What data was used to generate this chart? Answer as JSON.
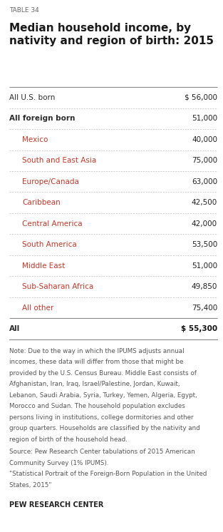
{
  "table_label": "TABLE 34",
  "title": "Median household income, by\nnativity and region of birth: 2015",
  "rows": [
    {
      "label": "All U.S. born",
      "value": "$ 56,000",
      "indent": 0,
      "bold": false,
      "label_color": "#2c2c2c",
      "value_bold": false,
      "top_line_solid": true
    },
    {
      "label": "All foreign born",
      "value": "51,000",
      "indent": 0,
      "bold": true,
      "label_color": "#2c2c2c",
      "value_bold": false,
      "top_line_solid": false
    },
    {
      "label": "Mexico",
      "value": "40,000",
      "indent": 1,
      "bold": false,
      "label_color": "#c0392b",
      "value_bold": false,
      "top_line_solid": false
    },
    {
      "label": "South and East Asia",
      "value": "75,000",
      "indent": 1,
      "bold": false,
      "label_color": "#c0392b",
      "value_bold": false,
      "top_line_solid": false
    },
    {
      "label": "Europe/Canada",
      "value": "63,000",
      "indent": 1,
      "bold": false,
      "label_color": "#c0392b",
      "value_bold": false,
      "top_line_solid": false
    },
    {
      "label": "Caribbean",
      "value": "42,500",
      "indent": 1,
      "bold": false,
      "label_color": "#c0392b",
      "value_bold": false,
      "top_line_solid": false
    },
    {
      "label": "Central America",
      "value": "42,000",
      "indent": 1,
      "bold": false,
      "label_color": "#c0392b",
      "value_bold": false,
      "top_line_solid": false
    },
    {
      "label": "South America",
      "value": "53,500",
      "indent": 1,
      "bold": false,
      "label_color": "#c0392b",
      "value_bold": false,
      "top_line_solid": false
    },
    {
      "label": "Middle East",
      "value": "51,000",
      "indent": 1,
      "bold": false,
      "label_color": "#c0392b",
      "value_bold": false,
      "top_line_solid": false
    },
    {
      "label": "Sub-Saharan Africa",
      "value": "49,850",
      "indent": 1,
      "bold": false,
      "label_color": "#c0392b",
      "value_bold": false,
      "top_line_solid": false
    },
    {
      "label": "All other",
      "value": "75,400",
      "indent": 1,
      "bold": false,
      "label_color": "#c0392b",
      "value_bold": false,
      "top_line_solid": false
    },
    {
      "label": "All",
      "value": "$ 55,300",
      "indent": 0,
      "bold": true,
      "label_color": "#2c2c2c",
      "value_bold": true,
      "top_line_solid": true
    }
  ],
  "note_lines": [
    "Note: Due to the way in which the IPUMS adjusts annual",
    "incomes, these data will differ from those that might be",
    "provided by the U.S. Census Bureau. Middle East consists of",
    "Afghanistan, Iran, Iraq, Israel/Palestine, Jordan, Kuwait,",
    "Lebanon, Saudi Arabia, Syria, Turkey, Yemen, Algeria, Egypt,",
    "Morocco and Sudan. The household population excludes",
    "persons living in institutions, college dormitories and other",
    "group quarters. Households are classified by the nativity and",
    "region of birth of the household head."
  ],
  "source_lines": [
    "Source: Pew Research Center tabulations of 2015 American",
    "Community Survey (1% IPUMS).",
    "\"Statistical Portrait of the Foreign-Born Population in the United",
    "States, 2015\""
  ],
  "footer": "PEW RESEARCH CENTER",
  "bg_color": "#ffffff",
  "title_color": "#1a1a1a",
  "table_label_color": "#666666",
  "note_color": "#555555",
  "footer_color": "#222222"
}
